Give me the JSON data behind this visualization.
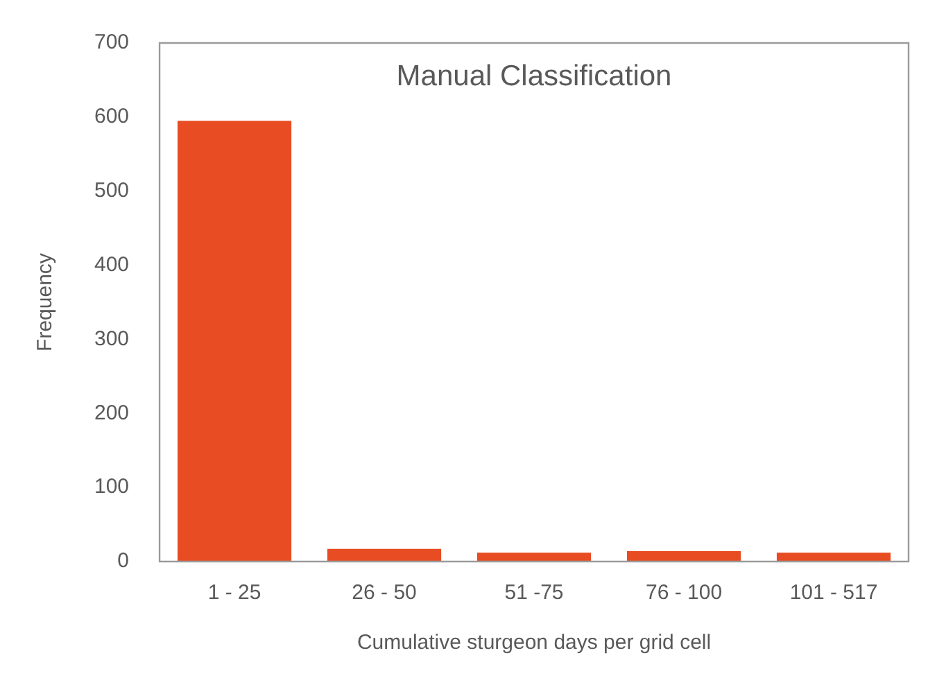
{
  "chart_data": {
    "type": "bar",
    "title": "Manual Classification",
    "xlabel": "Cumulative sturgeon days per grid cell",
    "ylabel": "Frequency",
    "categories": [
      "1 - 25",
      "26 - 50",
      "51 -75",
      "76 - 100",
      "101 - 517"
    ],
    "values": [
      595,
      17,
      12,
      14,
      12
    ],
    "color": "#e84c22",
    "ylim": [
      0,
      700
    ],
    "yticks": [
      0,
      100,
      200,
      300,
      400,
      500,
      600,
      700
    ],
    "grid": false,
    "legend": false
  }
}
